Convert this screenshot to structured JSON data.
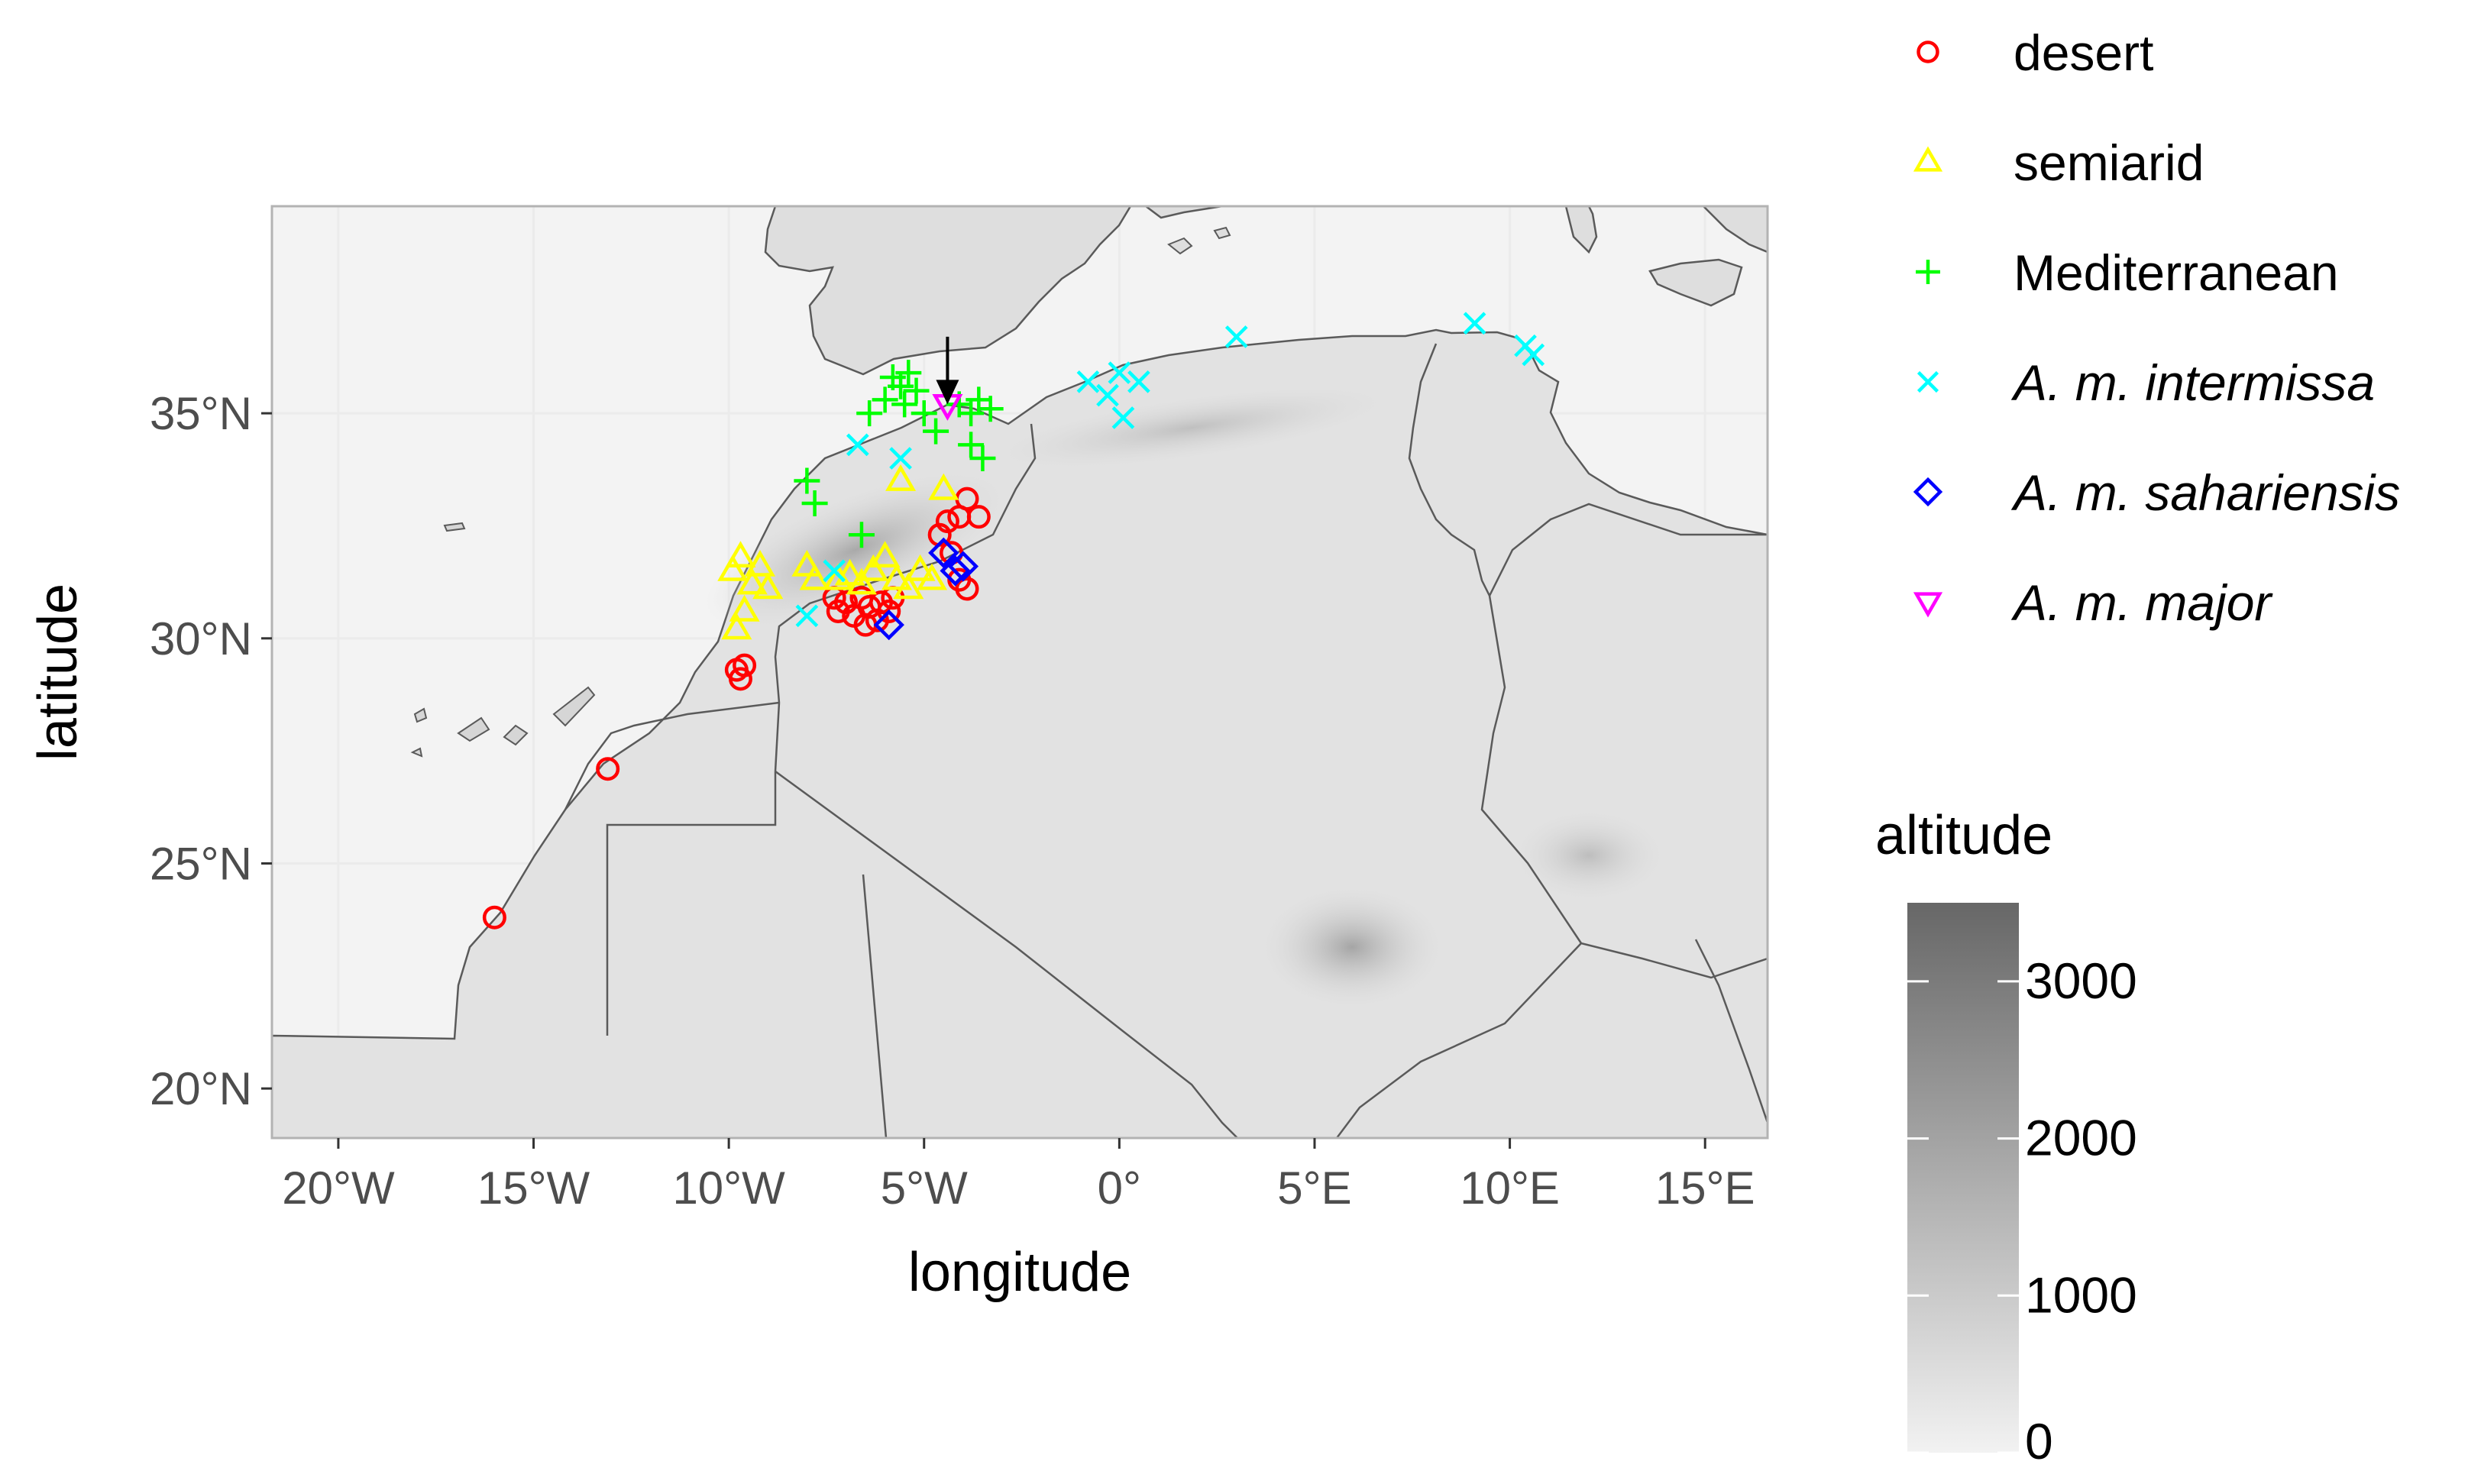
{
  "map": {
    "xlabel": "longitude",
    "ylabel": "latitude",
    "x_ticks": [
      {
        "value": -20,
        "label": "20°W"
      },
      {
        "value": -15,
        "label": "15°W"
      },
      {
        "value": -10,
        "label": "10°W"
      },
      {
        "value": -5,
        "label": "5°W"
      },
      {
        "value": 0,
        "label": "0°"
      },
      {
        "value": 5,
        "label": "5°E"
      },
      {
        "value": 10,
        "label": "10°E"
      },
      {
        "value": 15,
        "label": "15°E"
      }
    ],
    "y_ticks": [
      {
        "value": 20,
        "label": "20°N"
      },
      {
        "value": 25,
        "label": "25°N"
      },
      {
        "value": 30,
        "label": "30°N"
      },
      {
        "value": 35,
        "label": "35°N"
      }
    ],
    "xlim": [
      -21.7,
      16.6
    ],
    "ylim": [
      18.9,
      39.6
    ],
    "colors": {
      "panel_fill": "#e8e8e8",
      "sea": "#ffffff",
      "land_low": "#e4e4e4",
      "land_mid": "#d4d4d4",
      "land_high": "#b8b8b8",
      "border": "#5a5a5a",
      "grid": "#ebebeb",
      "frame": "#b3b3b3"
    },
    "arrow": {
      "lon": -4.4,
      "lat_start": 36.7,
      "lat_end": 35.2,
      "color": "#000000"
    }
  },
  "legend": {
    "groups": [
      {
        "id": "desert",
        "label": "desert",
        "shape": "circle",
        "color": "#ff0000",
        "italic": false
      },
      {
        "id": "semiarid",
        "label": "semiarid",
        "shape": "triangle-up",
        "color": "#ffff00",
        "italic": false
      },
      {
        "id": "mediterranean",
        "label": "Mediterranean",
        "shape": "plus",
        "color": "#00ff00",
        "italic": false
      },
      {
        "id": "intermissa",
        "label": "A. m. intermissa",
        "shape": "cross",
        "color": "#00ffff",
        "italic": true
      },
      {
        "id": "sahariensis",
        "label": "A. m. sahariensis",
        "shape": "diamond",
        "color": "#0000ff",
        "italic": true
      },
      {
        "id": "major",
        "label": "A. m. major",
        "shape": "triangle-down",
        "color": "#ff00ff",
        "italic": true
      }
    ],
    "colorbar": {
      "title": "altitude",
      "range": [
        0,
        3500
      ],
      "ticks": [
        {
          "value": 0,
          "label": "0"
        },
        {
          "value": 1000,
          "label": "1000"
        },
        {
          "value": 2000,
          "label": "2000"
        },
        {
          "value": 3000,
          "label": "3000"
        }
      ],
      "color_low": "#f2f2f2",
      "color_high": "#676767"
    }
  },
  "points": [
    {
      "g": "desert",
      "lon": -16.0,
      "lat": 23.8
    },
    {
      "g": "desert",
      "lon": -13.1,
      "lat": 27.1
    },
    {
      "g": "desert",
      "lon": -9.8,
      "lat": 29.3
    },
    {
      "g": "desert",
      "lon": -9.7,
      "lat": 29.1
    },
    {
      "g": "desert",
      "lon": -9.6,
      "lat": 29.4
    },
    {
      "g": "desert",
      "lon": -7.3,
      "lat": 30.9
    },
    {
      "g": "desert",
      "lon": -7.2,
      "lat": 30.6
    },
    {
      "g": "desert",
      "lon": -7.0,
      "lat": 30.8
    },
    {
      "g": "desert",
      "lon": -6.8,
      "lat": 30.5
    },
    {
      "g": "desert",
      "lon": -6.6,
      "lat": 30.9
    },
    {
      "g": "desert",
      "lon": -6.5,
      "lat": 30.3
    },
    {
      "g": "desert",
      "lon": -6.4,
      "lat": 30.7
    },
    {
      "g": "desert",
      "lon": -6.2,
      "lat": 30.4
    },
    {
      "g": "desert",
      "lon": -6.1,
      "lat": 30.8
    },
    {
      "g": "desert",
      "lon": -5.9,
      "lat": 30.6
    },
    {
      "g": "desert",
      "lon": -5.8,
      "lat": 30.9
    },
    {
      "g": "desert",
      "lon": -4.6,
      "lat": 32.3
    },
    {
      "g": "desert",
      "lon": -4.4,
      "lat": 32.6
    },
    {
      "g": "desert",
      "lon": -4.1,
      "lat": 32.7
    },
    {
      "g": "desert",
      "lon": -3.9,
      "lat": 33.1
    },
    {
      "g": "desert",
      "lon": -3.6,
      "lat": 32.7
    },
    {
      "g": "desert",
      "lon": -4.3,
      "lat": 31.9
    },
    {
      "g": "desert",
      "lon": -4.1,
      "lat": 31.3
    },
    {
      "g": "desert",
      "lon": -3.9,
      "lat": 31.1
    },
    {
      "g": "semiarid",
      "lon": -9.9,
      "lat": 31.5
    },
    {
      "g": "semiarid",
      "lon": -9.7,
      "lat": 31.8
    },
    {
      "g": "semiarid",
      "lon": -9.8,
      "lat": 30.2
    },
    {
      "g": "semiarid",
      "lon": -9.6,
      "lat": 30.6
    },
    {
      "g": "semiarid",
      "lon": -9.4,
      "lat": 31.2
    },
    {
      "g": "semiarid",
      "lon": -9.2,
      "lat": 31.6
    },
    {
      "g": "semiarid",
      "lon": -9.0,
      "lat": 31.1
    },
    {
      "g": "semiarid",
      "lon": -8.0,
      "lat": 31.6
    },
    {
      "g": "semiarid",
      "lon": -7.8,
      "lat": 31.3
    },
    {
      "g": "semiarid",
      "lon": -7.2,
      "lat": 31.3
    },
    {
      "g": "semiarid",
      "lon": -6.9,
      "lat": 31.4
    },
    {
      "g": "semiarid",
      "lon": -6.6,
      "lat": 31.2
    },
    {
      "g": "semiarid",
      "lon": -6.3,
      "lat": 31.5
    },
    {
      "g": "semiarid",
      "lon": -6.0,
      "lat": 31.8
    },
    {
      "g": "semiarid",
      "lon": -5.7,
      "lat": 31.3
    },
    {
      "g": "semiarid",
      "lon": -5.4,
      "lat": 31.1
    },
    {
      "g": "semiarid",
      "lon": -5.1,
      "lat": 31.5
    },
    {
      "g": "semiarid",
      "lon": -4.8,
      "lat": 31.3
    },
    {
      "g": "semiarid",
      "lon": -5.6,
      "lat": 33.5
    },
    {
      "g": "semiarid",
      "lon": -4.5,
      "lat": 33.3
    },
    {
      "g": "mediterranean",
      "lon": -8.0,
      "lat": 33.5
    },
    {
      "g": "mediterranean",
      "lon": -7.8,
      "lat": 33.0
    },
    {
      "g": "mediterranean",
      "lon": -6.6,
      "lat": 32.3
    },
    {
      "g": "mediterranean",
      "lon": -6.4,
      "lat": 35.0
    },
    {
      "g": "mediterranean",
      "lon": -6.0,
      "lat": 35.3
    },
    {
      "g": "mediterranean",
      "lon": -5.8,
      "lat": 35.8
    },
    {
      "g": "mediterranean",
      "lon": -5.6,
      "lat": 35.6
    },
    {
      "g": "mediterranean",
      "lon": -5.4,
      "lat": 35.9
    },
    {
      "g": "mediterranean",
      "lon": -5.5,
      "lat": 35.2
    },
    {
      "g": "mediterranean",
      "lon": -5.2,
      "lat": 35.5
    },
    {
      "g": "mediterranean",
      "lon": -5.0,
      "lat": 35.0
    },
    {
      "g": "mediterranean",
      "lon": -4.7,
      "lat": 34.6
    },
    {
      "g": "mediterranean",
      "lon": -4.1,
      "lat": 35.2
    },
    {
      "g": "mediterranean",
      "lon": -3.8,
      "lat": 35.0
    },
    {
      "g": "mediterranean",
      "lon": -3.6,
      "lat": 35.3
    },
    {
      "g": "mediterranean",
      "lon": -3.3,
      "lat": 35.1
    },
    {
      "g": "mediterranean",
      "lon": -3.8,
      "lat": 34.3
    },
    {
      "g": "mediterranean",
      "lon": -3.5,
      "lat": 34.0
    },
    {
      "g": "intermissa",
      "lon": -8.0,
      "lat": 30.5
    },
    {
      "g": "intermissa",
      "lon": -7.3,
      "lat": 31.5
    },
    {
      "g": "intermissa",
      "lon": -6.7,
      "lat": 34.3
    },
    {
      "g": "intermissa",
      "lon": -5.6,
      "lat": 34.0
    },
    {
      "g": "intermissa",
      "lon": -0.8,
      "lat": 35.7
    },
    {
      "g": "intermissa",
      "lon": -0.3,
      "lat": 35.4
    },
    {
      "g": "intermissa",
      "lon": 0.0,
      "lat": 35.9
    },
    {
      "g": "intermissa",
      "lon": 0.1,
      "lat": 34.9
    },
    {
      "g": "intermissa",
      "lon": 0.5,
      "lat": 35.7
    },
    {
      "g": "intermissa",
      "lon": 3.0,
      "lat": 36.7
    },
    {
      "g": "intermissa",
      "lon": 9.1,
      "lat": 37.0
    },
    {
      "g": "intermissa",
      "lon": 10.4,
      "lat": 36.5
    },
    {
      "g": "intermissa",
      "lon": 10.6,
      "lat": 36.3
    },
    {
      "g": "sahariensis",
      "lon": -5.9,
      "lat": 30.3
    },
    {
      "g": "sahariensis",
      "lon": -4.5,
      "lat": 31.9
    },
    {
      "g": "sahariensis",
      "lon": -4.2,
      "lat": 31.5
    },
    {
      "g": "sahariensis",
      "lon": -4.0,
      "lat": 31.6
    },
    {
      "g": "major",
      "lon": -4.4,
      "lat": 35.2
    }
  ]
}
